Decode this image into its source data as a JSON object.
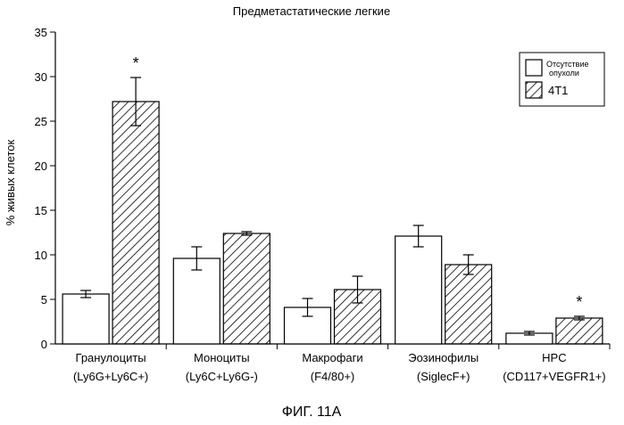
{
  "chart_data": {
    "type": "bar",
    "title": "Предметастатические легкие",
    "ylabel": "% живых клеток",
    "xlabel": "",
    "ylim": [
      0,
      35
    ],
    "yticks": [
      0,
      5,
      10,
      15,
      20,
      25,
      30,
      35
    ],
    "grid": false,
    "legend_position": "top-right",
    "categories": [
      [
        "Гранулоциты",
        "(Ly6G+Ly6C+)"
      ],
      [
        "Моноциты",
        "(Ly6C+Ly6G-)"
      ],
      [
        "Макрофаги",
        "(F4/80+)"
      ],
      [
        "Эозинофилы",
        "(SiglecF+)"
      ],
      [
        "HPC",
        "(CD117+VEGFR1+)"
      ]
    ],
    "series": [
      {
        "name": [
          "Отсутствие",
          "опухоли"
        ],
        "pattern": "open",
        "values": [
          5.6,
          9.6,
          4.1,
          12.1,
          1.2
        ],
        "errors": [
          0.4,
          1.3,
          1.0,
          1.2,
          0.2
        ],
        "significance": [
          "",
          "",
          "",
          "",
          ""
        ]
      },
      {
        "name": "4T1",
        "pattern": "hatched",
        "values": [
          27.2,
          12.4,
          6.1,
          8.9,
          2.9
        ],
        "errors": [
          2.7,
          0.2,
          1.5,
          1.1,
          0.2
        ],
        "significance": [
          "*",
          "",
          "",
          "",
          "*"
        ]
      }
    ],
    "colors": {
      "bar_fill": "#ffffff",
      "stroke": "#000000"
    }
  },
  "caption": "ФИГ. 11А"
}
